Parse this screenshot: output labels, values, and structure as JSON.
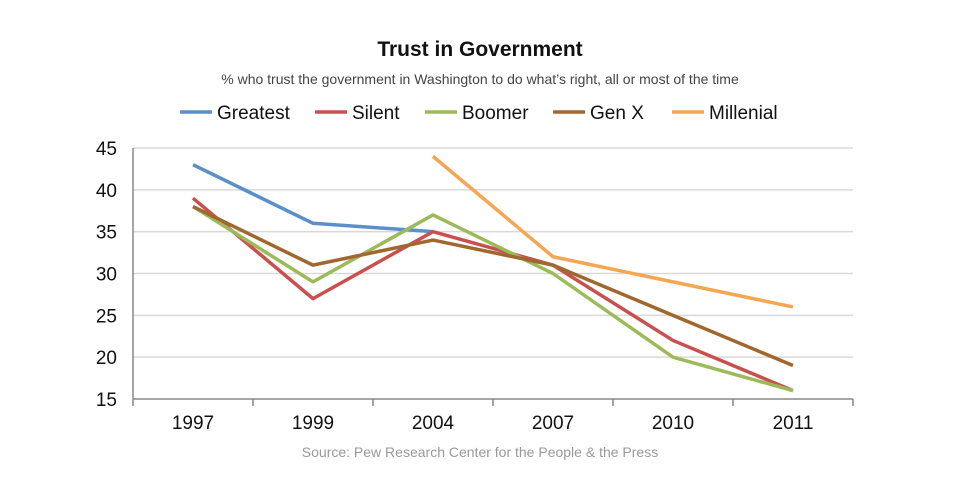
{
  "chart_data": {
    "type": "line",
    "title": "Trust in Government",
    "subtitle": "% who trust the government in Washington to do what’s right, all or most of the time",
    "source": "Source: Pew Research Center for the People & the Press",
    "categories": [
      "1997",
      "1999",
      "2004",
      "2007",
      "2010",
      "2011"
    ],
    "ylim": [
      15,
      45
    ],
    "yticks": [
      15,
      20,
      25,
      30,
      35,
      40,
      45
    ],
    "grid": true,
    "legend": "top",
    "series": [
      {
        "name": "Greatest",
        "color": "#5b8fc7",
        "values": [
          43,
          36,
          35,
          null,
          null,
          null
        ]
      },
      {
        "name": "Silent",
        "color": "#c9504e",
        "values": [
          39,
          27,
          35,
          31,
          22,
          16
        ]
      },
      {
        "name": "Boomer",
        "color": "#9bbb59",
        "values": [
          38,
          29,
          37,
          30,
          20,
          16
        ]
      },
      {
        "name": "Gen X",
        "color": "#a0672f",
        "values": [
          38,
          31,
          34,
          31,
          25,
          19
        ]
      },
      {
        "name": "Millenial",
        "color": "#f4a653",
        "values": [
          null,
          null,
          44,
          32,
          29,
          26
        ]
      }
    ]
  }
}
